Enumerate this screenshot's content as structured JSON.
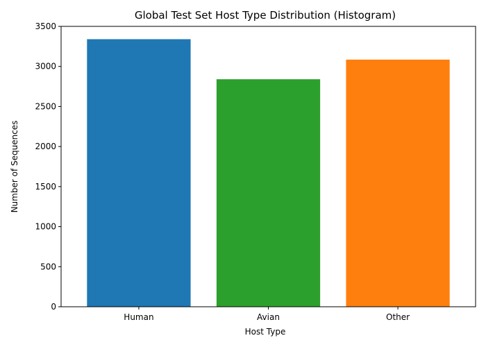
{
  "chart_data": {
    "type": "bar",
    "title": "Global Test Set Host Type Distribution (Histogram)",
    "xlabel": "Host Type",
    "ylabel": "Number of Sequences",
    "categories": [
      "Human",
      "Avian",
      "Other"
    ],
    "values": [
      3340,
      2840,
      3085
    ],
    "colors": [
      "#1f77b4",
      "#2ca02c",
      "#ff7f0e"
    ],
    "ylim": [
      0,
      3500
    ],
    "yticks": [
      0,
      500,
      1000,
      1500,
      2000,
      2500,
      3000,
      3500
    ],
    "grid": false,
    "legend": "none"
  }
}
